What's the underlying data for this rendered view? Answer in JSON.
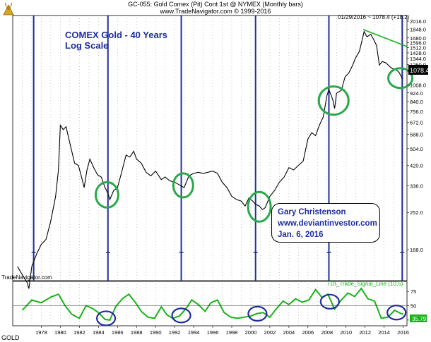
{
  "header": {
    "title": "GC-055: Gold Comex (Pit) Cont 1st @ NYMEX (Monthly bars)",
    "subtitle": "www.TradeNavigator.com © 1999-2016"
  },
  "annotations": {
    "note_line1": "COMEX Gold - 40 Years",
    "note_line2": "Log Scale",
    "author": "Gary Christenson",
    "website": "www.deviantinvestor.com",
    "date": "Jan. 6, 2016",
    "last_bar": "01/29/2016 ~ 1078.4 (+18.2)",
    "last_price": "1078.4",
    "watermark": "TradeNavigator.com",
    "indicator_label": "TDI_Trade_Signal_Line (10,5)",
    "indicator_value": "35.79",
    "symbol": "GOLD"
  },
  "colors": {
    "price": "#000000",
    "indicator": "#19b219",
    "cycle_lines": "#1f2e9e",
    "circles_price": "#2aa84a",
    "circles_indicator": "#1f2e9e",
    "trendline": "#19b219",
    "grid": "#a6a6a6"
  },
  "chart_data": [
    {
      "type": "line",
      "title": "",
      "scale": "log",
      "ylim": [
        120,
        2016
      ],
      "y_ticks": [
        2016.0,
        1848.0,
        1680.0,
        1596.0,
        1512.0,
        1428.0,
        1344.0,
        1260.0,
        1176.0,
        1008.0,
        924.0,
        840.0,
        756.0,
        672.0,
        588.0,
        504.0,
        420.0,
        336.0,
        252.0,
        168.0
      ],
      "x_ticks": [
        "1978",
        "1980",
        "1982",
        "1984",
        "1986",
        "1988",
        "1990",
        "1992",
        "1994",
        "1996",
        "1998",
        "2000",
        "2002",
        "2004",
        "2006",
        "2008",
        "2010",
        "2012",
        "2014",
        "2016"
      ],
      "series": [
        {
          "x": [
            1975.5,
            1976.0,
            1976.5,
            1976.7,
            1977.0,
            1977.5,
            1978.0,
            1978.5,
            1979.0,
            1979.5,
            1979.8,
            1980.0,
            1980.3,
            1980.6,
            1980.9,
            1981.2,
            1981.5,
            1981.9,
            1982.3,
            1982.5,
            1982.8,
            1983.1,
            1983.5,
            1983.9,
            1984.3,
            1984.7,
            1985.0,
            1985.2,
            1985.6,
            1986.0,
            1986.5,
            1986.9,
            1987.3,
            1987.7,
            1988.0,
            1988.5,
            1989.0,
            1989.5,
            1990.0,
            1990.6,
            1991.0,
            1991.5,
            1992.0,
            1992.5,
            1993.0,
            1993.5,
            1994.0,
            1994.5,
            1995.0,
            1995.5,
            1996.0,
            1996.5,
            1997.0,
            1997.5,
            1998.0,
            1998.5,
            1999.0,
            1999.4,
            1999.8,
            2000.2,
            2000.5,
            2000.9,
            2001.2,
            2001.5,
            2002.0,
            2002.5,
            2003.0,
            2003.5,
            2004.0,
            2004.5,
            2005.0,
            2005.5,
            2006.0,
            2006.4,
            2006.8,
            2007.2,
            2007.6,
            2008.0,
            2008.2,
            2008.6,
            2008.8,
            2009.0,
            2009.5,
            2009.9,
            2010.3,
            2010.7,
            2011.0,
            2011.4,
            2011.7,
            2011.9,
            2012.2,
            2012.6,
            2012.9,
            2013.2,
            2013.5,
            2013.8,
            2014.2,
            2014.6,
            2014.9,
            2015.2,
            2015.6,
            2015.9,
            2016.0
          ],
          "values": [
            140,
            128,
            118,
            110,
            140,
            160,
            178,
            188,
            230,
            300,
            400,
            650,
            620,
            640,
            560,
            490,
            430,
            420,
            360,
            330,
            400,
            450,
            410,
            380,
            370,
            330,
            310,
            290,
            320,
            330,
            400,
            470,
            460,
            490,
            450,
            430,
            390,
            375,
            395,
            360,
            370,
            355,
            350,
            340,
            330,
            375,
            385,
            390,
            385,
            390,
            395,
            385,
            350,
            330,
            300,
            290,
            285,
            270,
            295,
            285,
            275,
            270,
            260,
            265,
            300,
            320,
            350,
            370,
            410,
            400,
            420,
            440,
            560,
            600,
            580,
            650,
            710,
            900,
            960,
            860,
            780,
            920,
            950,
            1100,
            1150,
            1250,
            1350,
            1450,
            1650,
            1800,
            1700,
            1750,
            1650,
            1550,
            1250,
            1300,
            1280,
            1230,
            1200,
            1200,
            1150,
            1080,
            1078.4
          ]
        }
      ]
    },
    {
      "type": "line",
      "title": "TDI_Trade_Signal_Line (10,5)",
      "ylim": [
        15,
        85
      ],
      "y_ticks": [
        75,
        50,
        25
      ],
      "series": [
        {
          "name": "TDI_Trade_Signal_Line (10,5)",
          "x": [
            1976.0,
            1977.0,
            1978.0,
            1979.0,
            1979.8,
            1980.5,
            1981.2,
            1982.0,
            1982.7,
            1983.4,
            1984.0,
            1984.7,
            1985.2,
            1985.8,
            1986.5,
            1987.2,
            1987.9,
            1988.5,
            1989.2,
            1989.9,
            1990.6,
            1991.2,
            1991.8,
            1992.5,
            1993.2,
            1993.8,
            1994.5,
            1995.2,
            1995.8,
            1996.5,
            1997.2,
            1997.9,
            1998.6,
            1999.3,
            2000.0,
            2000.6,
            2001.3,
            2002.0,
            2002.7,
            2003.4,
            2004.0,
            2004.7,
            2005.4,
            2006.1,
            2006.8,
            2007.5,
            2008.1,
            2008.8,
            2009.5,
            2010.2,
            2010.9,
            2011.6,
            2012.3,
            2013.0,
            2013.7,
            2014.4,
            2015.1,
            2015.8,
            2016.0
          ],
          "values": [
            42,
            60,
            55,
            65,
            70,
            50,
            35,
            28,
            50,
            45,
            38,
            26,
            25,
            48,
            62,
            70,
            55,
            40,
            30,
            28,
            48,
            34,
            28,
            32,
            45,
            60,
            52,
            40,
            55,
            60,
            38,
            30,
            28,
            30,
            32,
            36,
            38,
            30,
            45,
            58,
            52,
            62,
            56,
            60,
            78,
            64,
            70,
            44,
            60,
            72,
            66,
            80,
            62,
            58,
            28,
            30,
            42,
            36,
            35.79
          ]
        }
      ]
    }
  ]
}
